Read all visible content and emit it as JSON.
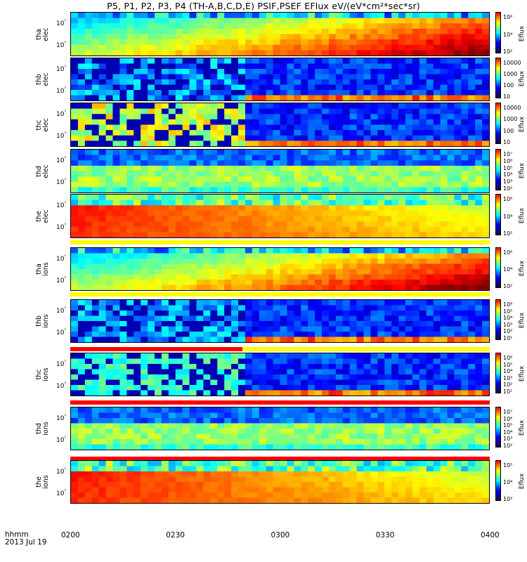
{
  "title": "P5, P1, P2, P3, P4 (TH-A,B,C,D,E) PSIF,PSEF EFlux eV/(eV*cm²*sec*sr)",
  "corner": {
    "line1": "hhmm",
    "line2": "2013 Jul 19"
  },
  "xticks": [
    "0200",
    "0230",
    "0300",
    "0330",
    "0400"
  ],
  "colorbar_unit": "Eflux",
  "chart_data": {
    "type": "heatmap",
    "x_range": [
      "02:00",
      "04:00"
    ],
    "y_scale": "log",
    "panels": [
      {
        "name": "tha elec",
        "label": [
          "tha",
          "elec"
        ],
        "yticks": [
          "10⁵",
          "10³"
        ],
        "cbar": [
          "10⁶",
          "10⁴",
          "10²"
        ],
        "data_end": 1.0,
        "cutoff": null
      },
      {
        "name": "thb elec",
        "label": [
          "thb",
          "elec"
        ],
        "yticks": [
          "10⁵",
          "10³"
        ],
        "cbar": [
          "10000",
          "1000",
          "100",
          "10"
        ],
        "data_end": 1.0,
        "cutoff": 0.41
      },
      {
        "name": "thc elec",
        "label": [
          "thc",
          "elec"
        ],
        "yticks": [
          "10⁵",
          "10³"
        ],
        "cbar": [
          "10000",
          "1000",
          "100",
          "10"
        ],
        "data_end": 1.0,
        "cutoff": 0.41
      },
      {
        "name": "thd elec",
        "label": [
          "thd",
          "elec"
        ],
        "yticks": [
          "10⁵",
          "10³"
        ],
        "cbar": [
          "10⁷",
          "10⁶",
          "10⁵",
          "10⁴",
          "10³",
          "10²"
        ],
        "data_end": 1.0,
        "cutoff": null
      },
      {
        "name": "the elec",
        "label": [
          "the",
          "elec"
        ],
        "yticks": [
          "10⁵",
          "10³"
        ],
        "cbar": [
          "10⁶",
          "10⁴",
          "10²"
        ],
        "data_end": 1.0,
        "cutoff": null
      },
      {
        "name": "tha ions",
        "label": [
          "tha",
          "ions"
        ],
        "yticks": [
          "10⁵",
          "10³"
        ],
        "cbar": [
          "10⁶",
          "10⁴",
          "10²"
        ],
        "data_end": 1.0,
        "cutoff": null
      },
      {
        "name": "thb ions",
        "label": [
          "thb",
          "ions"
        ],
        "yticks": [
          "10⁵",
          "10³"
        ],
        "cbar": [
          "10⁶",
          "10⁵",
          "10⁴",
          "10³",
          "10²",
          "10¹"
        ],
        "data_end": 1.0,
        "cutoff": 0.41
      },
      {
        "name": "thc ions",
        "label": [
          "thc",
          "ions"
        ],
        "yticks": [
          "10⁵",
          "10³"
        ],
        "cbar": [
          "10⁶",
          "10⁵",
          "10⁴",
          "10³",
          "10²",
          "10¹"
        ],
        "data_end": 1.0,
        "cutoff": 0.41
      },
      {
        "name": "thd ions",
        "label": [
          "thd",
          "ions"
        ],
        "yticks": [
          "10⁵",
          "10³"
        ],
        "cbar": [
          "10⁷",
          "10⁶",
          "10⁵",
          "10⁴",
          "10³",
          "10²"
        ],
        "data_end": 1.0,
        "cutoff": null
      },
      {
        "name": "the ions",
        "label": [
          "the",
          "ions"
        ],
        "yticks": [
          "10⁵",
          "10³"
        ],
        "cbar": [
          "10⁵",
          "10⁴",
          "10³"
        ],
        "data_end": 1.0,
        "cutoff": null
      }
    ]
  }
}
